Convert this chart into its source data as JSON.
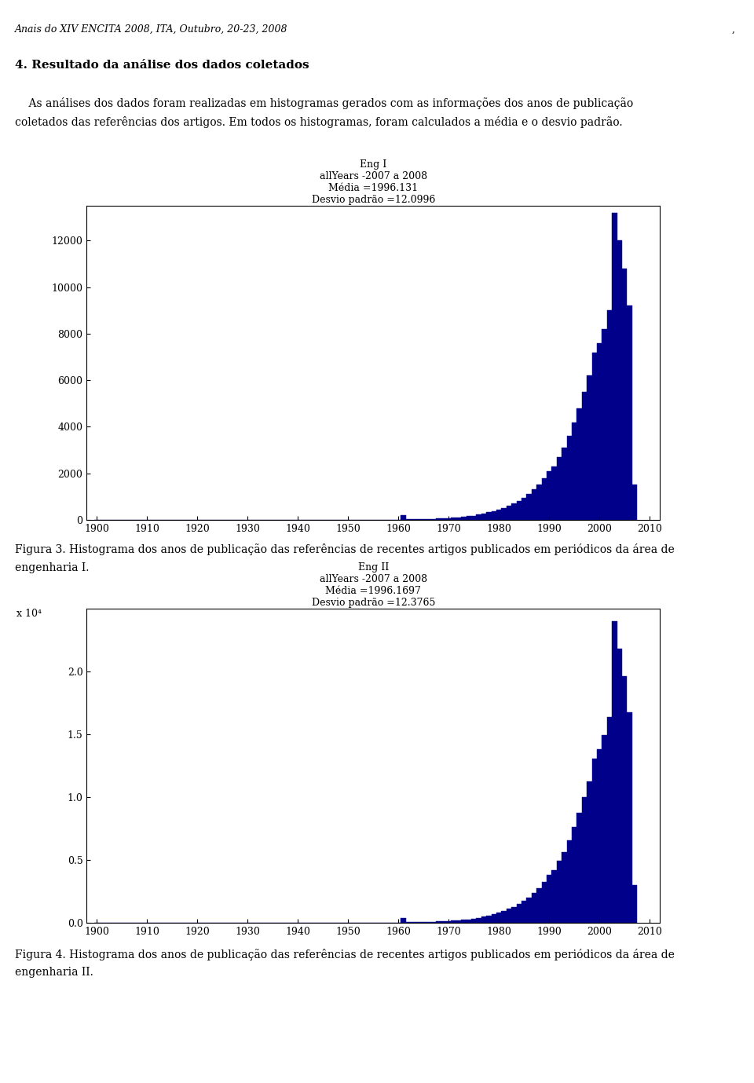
{
  "header": "Anais do XIV ENCITA 2008, ITA, Outubro, 20-23, 2008",
  "section_title": "4. Resultado da análise dos dados coletados",
  "para_line1": "    As análises dos dados foram realizadas em histogramas gerados com as informações dos anos de publicação",
  "para_line2": "coletados das referências dos artigos. Em todos os histogramas, foram calculados a média e o desvio padrão.",
  "chart1": {
    "title_line1": "Eng I",
    "title_line2": "allYears -2007 a 2008",
    "title_line3": "Média =1996.131",
    "title_line4": "Desvio padrão =12.0996",
    "xlabel_ticks": [
      1900,
      1910,
      1920,
      1930,
      1940,
      1950,
      1960,
      1970,
      1980,
      1990,
      2000,
      2010
    ],
    "yticks": [
      0,
      2000,
      4000,
      6000,
      8000,
      10000,
      12000
    ],
    "bar_color": "#00008B",
    "xlim": [
      1898,
      2012
    ],
    "ylim": [
      0,
      13500
    ]
  },
  "chart2": {
    "title_line1": "Eng II",
    "title_line2": "allYears -2007 a 2008",
    "title_line3": "Média =1996.1697",
    "title_line4": "Desvio padrão =12.3765",
    "xlabel_ticks": [
      1900,
      1910,
      1920,
      1930,
      1940,
      1950,
      1960,
      1970,
      1980,
      1990,
      2000,
      2010
    ],
    "yticks": [
      0,
      0.5,
      1.0,
      1.5,
      2.0
    ],
    "bar_color": "#00008B",
    "xlim": [
      1898,
      2012
    ],
    "ylim": [
      0,
      2.5
    ],
    "scale_label": "x 10⁴"
  },
  "fig3_caption_line1": "Figura 3. Histograma dos anos de publicação das referências de recentes artigos publicados em periódicos da área de",
  "fig3_caption_line2": "engenharia I.",
  "fig4_caption_line1": "Figura 4. Histograma dos anos de publicação das referências de recentes artigos publicados em periódicos da área de",
  "fig4_caption_line2": "engenharia II.",
  "page_marker": ",",
  "background_color": "#ffffff"
}
